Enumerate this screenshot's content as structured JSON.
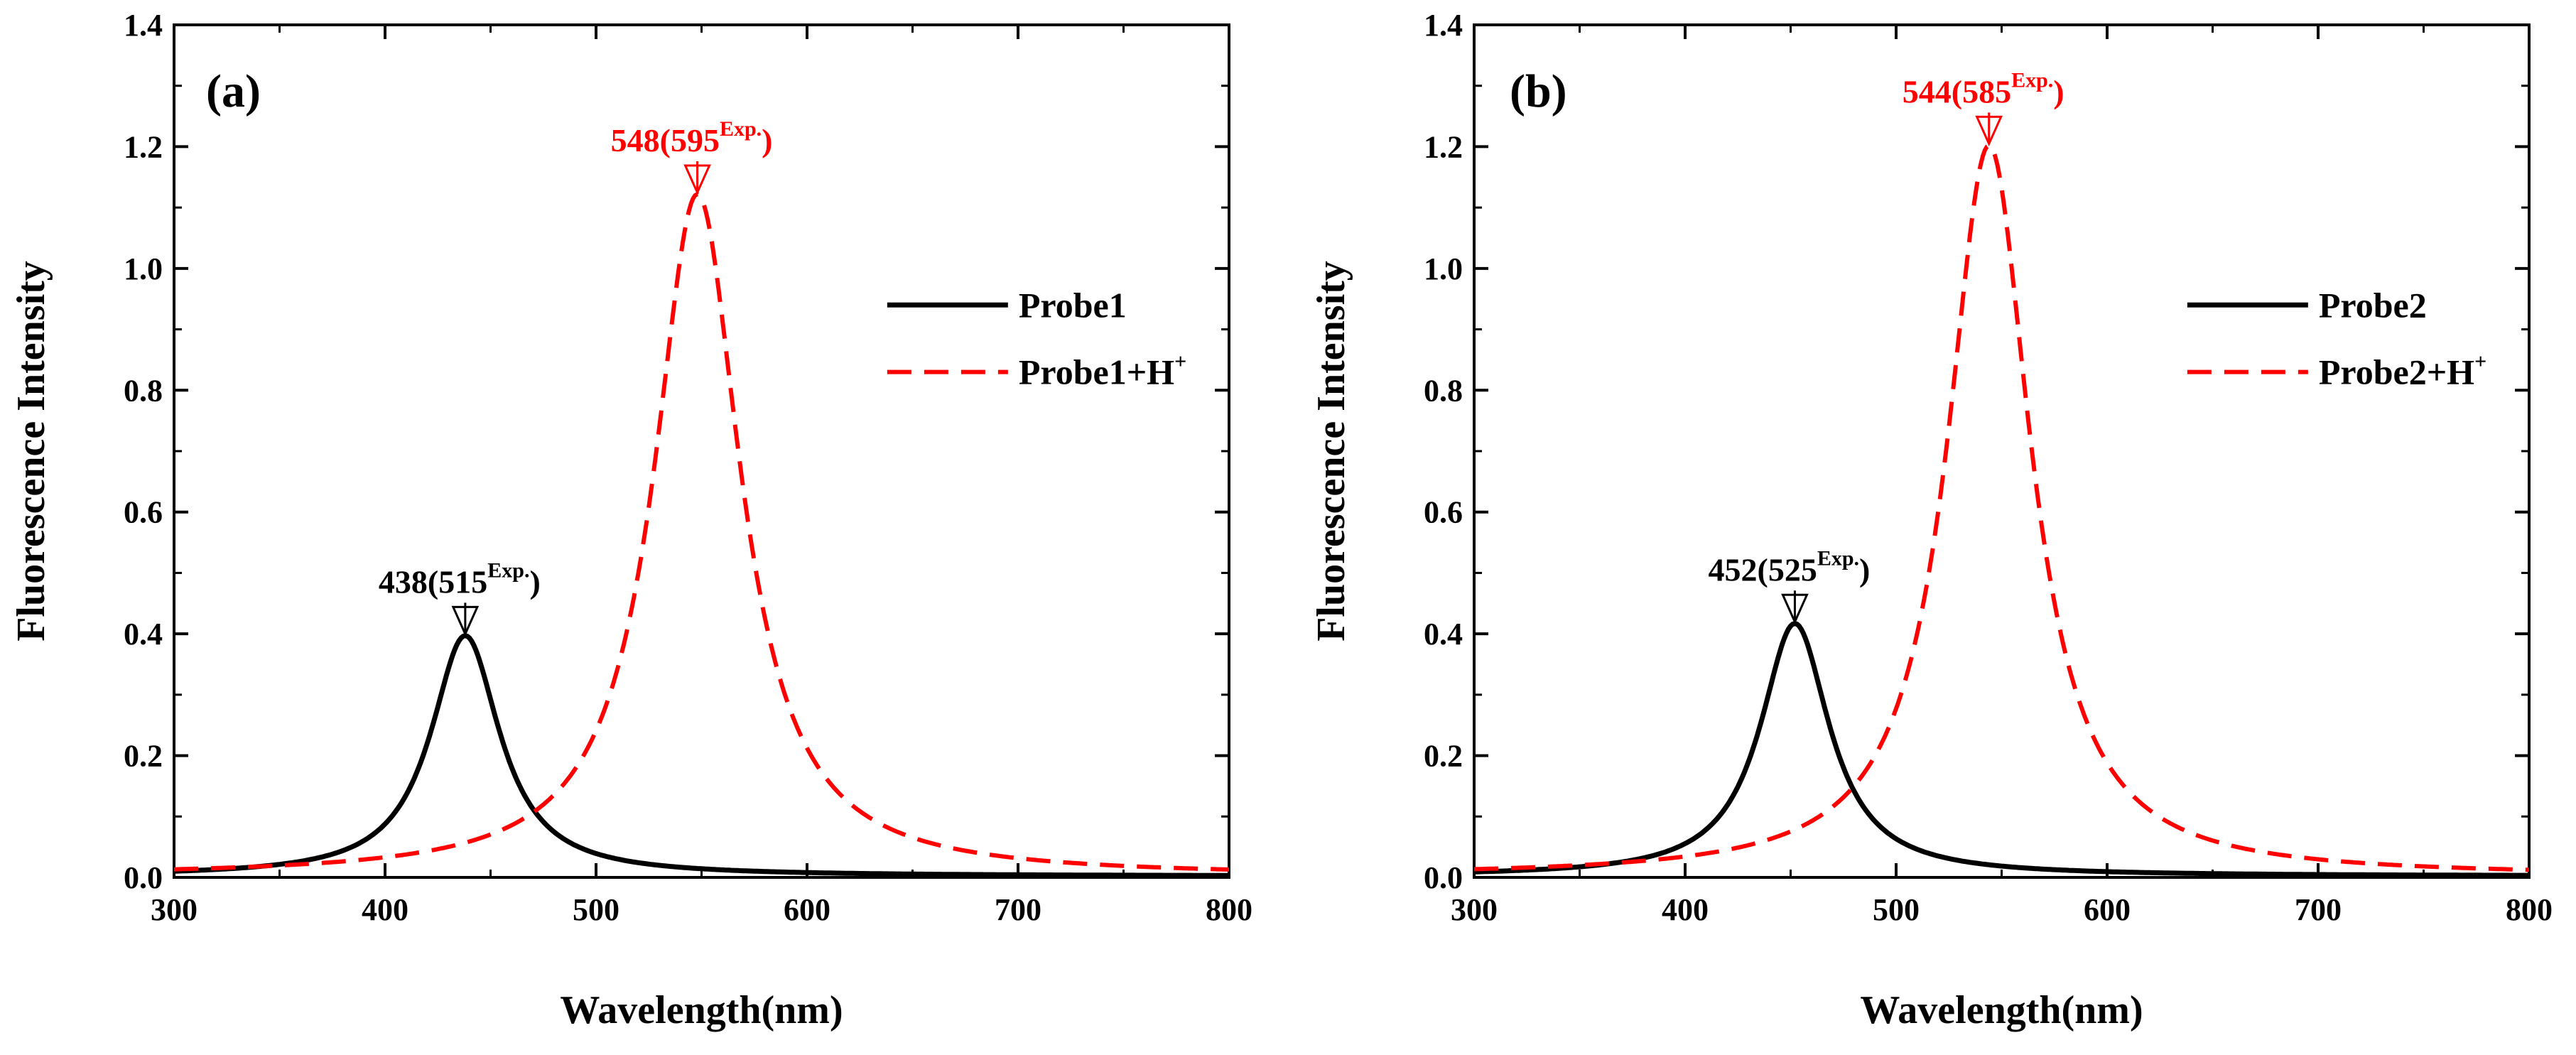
{
  "chart_data": [
    {
      "type": "line",
      "panel_label": "(a)",
      "xlabel": "Wavelength(nm)",
      "ylabel": "Fluorescence  Intensity",
      "xlim": [
        300,
        800
      ],
      "ylim": [
        0,
        1.4
      ],
      "xticks": [
        300,
        400,
        500,
        600,
        700,
        800
      ],
      "xtick_labels": [
        "300",
        "400",
        "500",
        "600",
        "700",
        "800"
      ],
      "yticks": [
        0.0,
        0.2,
        0.4,
        0.6,
        0.8,
        1.0,
        1.2,
        1.4
      ],
      "ytick_labels": [
        "0.0",
        "0.2",
        "0.4",
        "0.6",
        "0.8",
        "1.0",
        "1.2",
        "1.4"
      ],
      "legend_position": "right",
      "series": [
        {
          "name": "Probe1",
          "legend_main": "Probe1",
          "legend_sup": "",
          "color": "#000000",
          "style": "solid",
          "peak_x": 438,
          "peak_y": 0.395,
          "hwhm": 20,
          "x": [
            300,
            320,
            340,
            360,
            380,
            400,
            410,
            420,
            430,
            438,
            446,
            456,
            470,
            490,
            520,
            560,
            600,
            650,
            700,
            750,
            800
          ],
          "y": [
            0.008,
            0.01,
            0.014,
            0.02,
            0.035,
            0.083,
            0.125,
            0.215,
            0.341,
            0.395,
            0.341,
            0.215,
            0.102,
            0.042,
            0.02,
            0.011,
            0.007,
            0.006,
            0.005,
            0.004,
            0.003
          ],
          "annotation": {
            "x": 438,
            "main": "438(515",
            "sup": "Exp.",
            "close": ")"
          }
        },
        {
          "name": "Probe1+H+",
          "legend_main": "Probe1+H",
          "legend_sup": "+",
          "color": "#ff0000",
          "style": "dashed",
          "peak_x": 548,
          "peak_y": 1.12,
          "hwhm": 25,
          "x": [
            300,
            340,
            380,
            420,
            450,
            470,
            490,
            500,
            510,
            520,
            530,
            540,
            548,
            556,
            566,
            580,
            600,
            620,
            650,
            700,
            750,
            800
          ],
          "y": [
            0.008,
            0.011,
            0.016,
            0.04,
            0.067,
            0.1,
            0.17,
            0.241,
            0.339,
            0.494,
            0.74,
            1.02,
            1.12,
            1.02,
            0.74,
            0.408,
            0.211,
            0.127,
            0.061,
            0.03,
            0.015,
            0.008
          ],
          "annotation": {
            "x": 548,
            "main": "548(595",
            "sup": "Exp.",
            "close": ")"
          }
        }
      ]
    },
    {
      "type": "line",
      "panel_label": "(b)",
      "xlabel": "Wavelength(nm)",
      "ylabel": "Fluorescence  Intensity",
      "xlim": [
        300,
        800
      ],
      "ylim": [
        0,
        1.4
      ],
      "xticks": [
        300,
        400,
        500,
        600,
        700,
        800
      ],
      "xtick_labels": [
        "300",
        "400",
        "500",
        "600",
        "700",
        "800"
      ],
      "yticks": [
        0.0,
        0.2,
        0.4,
        0.6,
        0.8,
        1.0,
        1.2,
        1.4
      ],
      "ytick_labels": [
        "0.0",
        "0.2",
        "0.4",
        "0.6",
        "0.8",
        "1.0",
        "1.2",
        "1.4"
      ],
      "legend_position": "right",
      "series": [
        {
          "name": "Probe2",
          "legend_main": "Probe2",
          "legend_sup": "",
          "color": "#000000",
          "style": "solid",
          "peak_x": 452,
          "peak_y": 0.415,
          "hwhm": 20,
          "x": [
            300,
            320,
            340,
            360,
            380,
            400,
            420,
            430,
            440,
            452,
            464,
            474,
            490,
            510,
            540,
            580,
            620,
            680,
            740,
            800
          ],
          "y": [
            0.008,
            0.01,
            0.013,
            0.018,
            0.028,
            0.053,
            0.117,
            0.186,
            0.3,
            0.415,
            0.3,
            0.186,
            0.092,
            0.042,
            0.02,
            0.01,
            0.007,
            0.005,
            0.004,
            0.003
          ],
          "annotation": {
            "x": 452,
            "main": "452(525",
            "sup": "Exp.",
            "close": ")"
          }
        },
        {
          "name": "Probe2+H+",
          "legend_main": "Probe2+H",
          "legend_sup": "+",
          "color": "#ff0000",
          "style": "dashed",
          "peak_x": 544,
          "peak_y": 1.2,
          "hwhm": 24,
          "x": [
            300,
            340,
            380,
            420,
            450,
            470,
            490,
            500,
            510,
            520,
            530,
            544,
            558,
            570,
            580,
            600,
            620,
            650,
            700,
            750,
            800
          ],
          "y": [
            0.008,
            0.011,
            0.017,
            0.04,
            0.072,
            0.11,
            0.197,
            0.272,
            0.407,
            0.593,
            0.897,
            1.2,
            0.897,
            0.593,
            0.407,
            0.2,
            0.11,
            0.05,
            0.023,
            0.013,
            0.008
          ],
          "annotation": {
            "x": 544,
            "main": "544(585",
            "sup": "Exp.",
            "close": ")"
          }
        }
      ]
    }
  ]
}
